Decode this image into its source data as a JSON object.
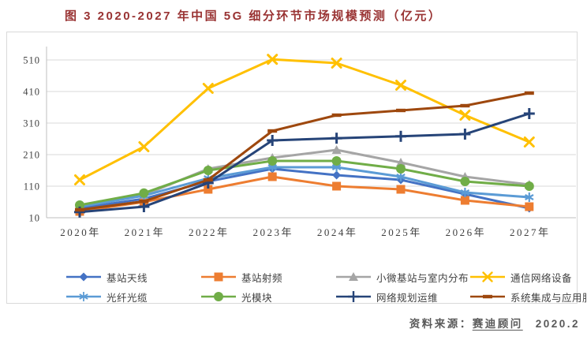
{
  "title": "图 3 2020-2027 年中国 5G 细分环节市场规模预测（亿元）",
  "source": {
    "prefix": "资料来源：",
    "name": "赛迪顾问",
    "date": "2020.2"
  },
  "colors": {
    "title_red": "#993333",
    "grid_gray": "#d9d9d9",
    "axis_gray": "#bfbfbf",
    "tick_text": "#404040",
    "source_text": "#595959"
  },
  "chart_data": {
    "type": "line",
    "title": "图 3 2020-2027 年中国 5G 细分环节市场规模预测（亿元）",
    "xlabel": "",
    "ylabel": "",
    "categories": [
      "2020年",
      "2021年",
      "2022年",
      "2023年",
      "2024年",
      "2025年",
      "2026年",
      "2027年"
    ],
    "y_ticks": [
      10,
      110,
      210,
      310,
      410,
      510
    ],
    "ylim": [
      10,
      560
    ],
    "grid": true,
    "legend_position": "bottom",
    "series": [
      {
        "name": "基站天线",
        "id": "base-station-antenna",
        "color": "#4472C4",
        "marker": "diamond",
        "values": [
          40,
          70,
          125,
          165,
          145,
          130,
          85,
          40
        ]
      },
      {
        "name": "基站射频",
        "id": "base-station-rf",
        "color": "#ED7D31",
        "marker": "square",
        "values": [
          30,
          60,
          100,
          140,
          110,
          100,
          65,
          45
        ]
      },
      {
        "name": "小微基站与室内分布",
        "id": "small-cell-indoor",
        "color": "#A5A5A5",
        "marker": "triangle",
        "values": [
          48,
          82,
          165,
          200,
          225,
          185,
          140,
          115
        ]
      },
      {
        "name": "通信网络设备",
        "id": "network-equipment",
        "color": "#FFC000",
        "marker": "x",
        "values": [
          130,
          235,
          420,
          512,
          500,
          430,
          335,
          250
        ]
      },
      {
        "name": "光纤光缆",
        "id": "fiber-optic-cable",
        "color": "#5B9BD5",
        "marker": "asterisk",
        "values": [
          45,
          80,
          135,
          170,
          170,
          140,
          90,
          75
        ]
      },
      {
        "name": "光模块",
        "id": "optical-module",
        "color": "#70AD47",
        "marker": "circle",
        "values": [
          50,
          88,
          160,
          190,
          190,
          165,
          125,
          110
        ]
      },
      {
        "name": "网络规划运维",
        "id": "network-planning-ops",
        "color": "#264478",
        "marker": "plus",
        "values": [
          28,
          45,
          120,
          255,
          262,
          268,
          275,
          340
        ]
      },
      {
        "name": "系统集成与应用服务",
        "id": "system-integration-services",
        "color": "#9E480E",
        "marker": "dash",
        "values": [
          35,
          62,
          130,
          285,
          335,
          350,
          365,
          405
        ]
      }
    ]
  }
}
